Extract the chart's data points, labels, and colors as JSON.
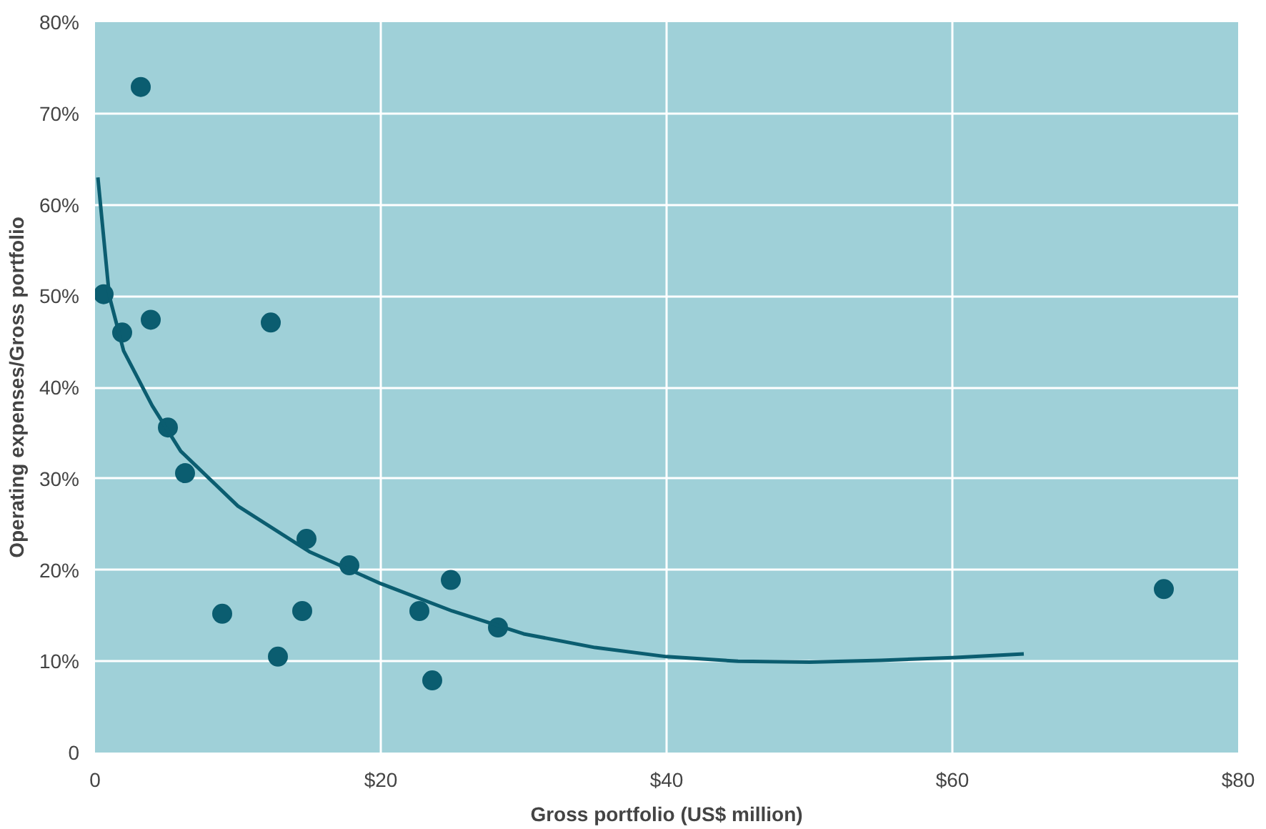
{
  "chart_data": {
    "type": "scatter",
    "xlabel": "Gross portfolio (US$ million)",
    "ylabel": "Operating expenses/Gross portfolio",
    "xlim": [
      0,
      80
    ],
    "ylim": [
      0,
      80
    ],
    "xticks": [
      0,
      {
        "value": 20,
        "label": "$20"
      },
      {
        "value": 40,
        "label": "$40"
      },
      {
        "value": 60,
        "label": "$60"
      },
      {
        "value": 80,
        "label": "$80"
      }
    ],
    "yticks": [
      0,
      {
        "value": 10,
        "label": "10%"
      },
      {
        "value": 20,
        "label": "20%"
      },
      {
        "value": 30,
        "label": "30%"
      },
      {
        "value": 40,
        "label": "40%"
      },
      {
        "value": 50,
        "label": "50%"
      },
      {
        "value": 60,
        "label": "60%"
      },
      {
        "value": 70,
        "label": "70%"
      },
      {
        "value": 80,
        "label": "80%"
      }
    ],
    "grid": true,
    "series": [
      {
        "marker": "circle",
        "color": "#0b5d70",
        "x": [
          0.6,
          3.2,
          1.9,
          3.9,
          5.1,
          6.3,
          8.9,
          12.3,
          12.8,
          14.8,
          14.5,
          17.8,
          22.7,
          23.6,
          24.9,
          28.2,
          74.8
        ],
        "values": [
          50.2,
          72.9,
          46.0,
          47.4,
          35.6,
          30.6,
          15.2,
          47.1,
          10.5,
          23.4,
          15.5,
          20.5,
          15.5,
          7.9,
          18.9,
          13.7,
          17.9
        ]
      },
      {
        "type": "line",
        "color": "#0b5d70",
        "x": [
          0.2,
          1,
          2,
          4,
          6,
          10,
          15,
          20,
          25,
          30,
          35,
          40,
          45,
          50,
          55,
          60,
          65
        ],
        "values": [
          63,
          50,
          44,
          38,
          33,
          27,
          22,
          18.5,
          15.5,
          13,
          11.5,
          10.5,
          10,
          9.9,
          10.1,
          10.4,
          10.8
        ]
      }
    ]
  }
}
